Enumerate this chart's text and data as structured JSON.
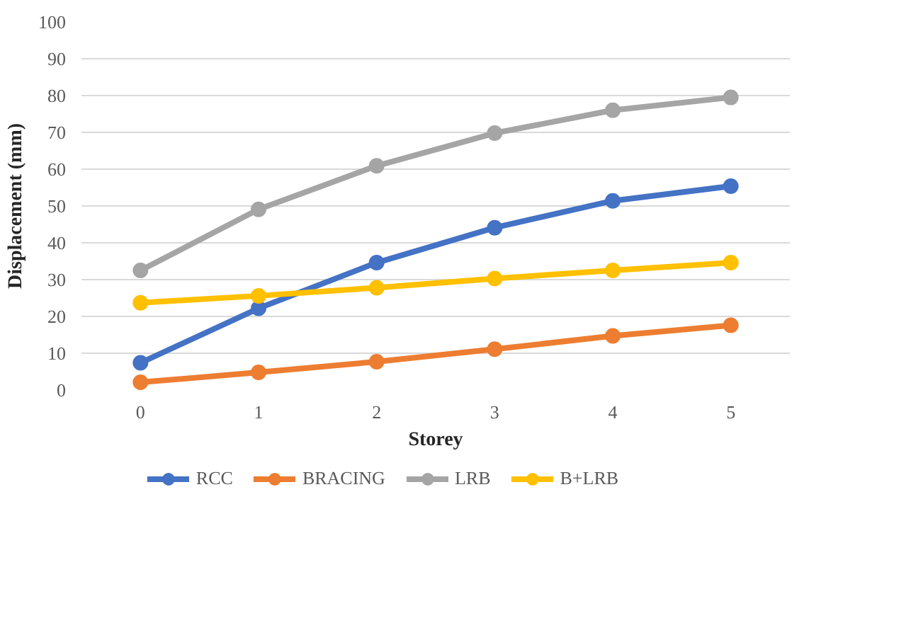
{
  "chart_data": {
    "type": "line",
    "xlabel": "Storey",
    "ylabel": "Displacement (mm)",
    "categories": [
      "0",
      "1",
      "2",
      "3",
      "4",
      "5"
    ],
    "series": [
      {
        "name": "RCC",
        "color": "#4472c4",
        "values": [
          7.4,
          22.2,
          34.6,
          44.1,
          51.4,
          55.4
        ]
      },
      {
        "name": "BRACING",
        "color": "#ed7d31",
        "values": [
          2.1,
          4.8,
          7.7,
          11.1,
          14.7,
          17.6
        ]
      },
      {
        "name": "LRB",
        "color": "#a5a5a5",
        "values": [
          32.5,
          49.1,
          60.9,
          69.8,
          76,
          79.5
        ]
      },
      {
        "name": "B+LRB",
        "color": "#ffc000",
        "values": [
          23.7,
          25.6,
          27.8,
          30.3,
          32.5,
          34.6
        ]
      }
    ],
    "ylim": [
      0,
      100
    ],
    "yticks": [
      0,
      10,
      20,
      30,
      40,
      50,
      60,
      70,
      80,
      90,
      100
    ],
    "grid": "y",
    "legend": "bottom",
    "marker": "circle",
    "line_style": "solid"
  }
}
